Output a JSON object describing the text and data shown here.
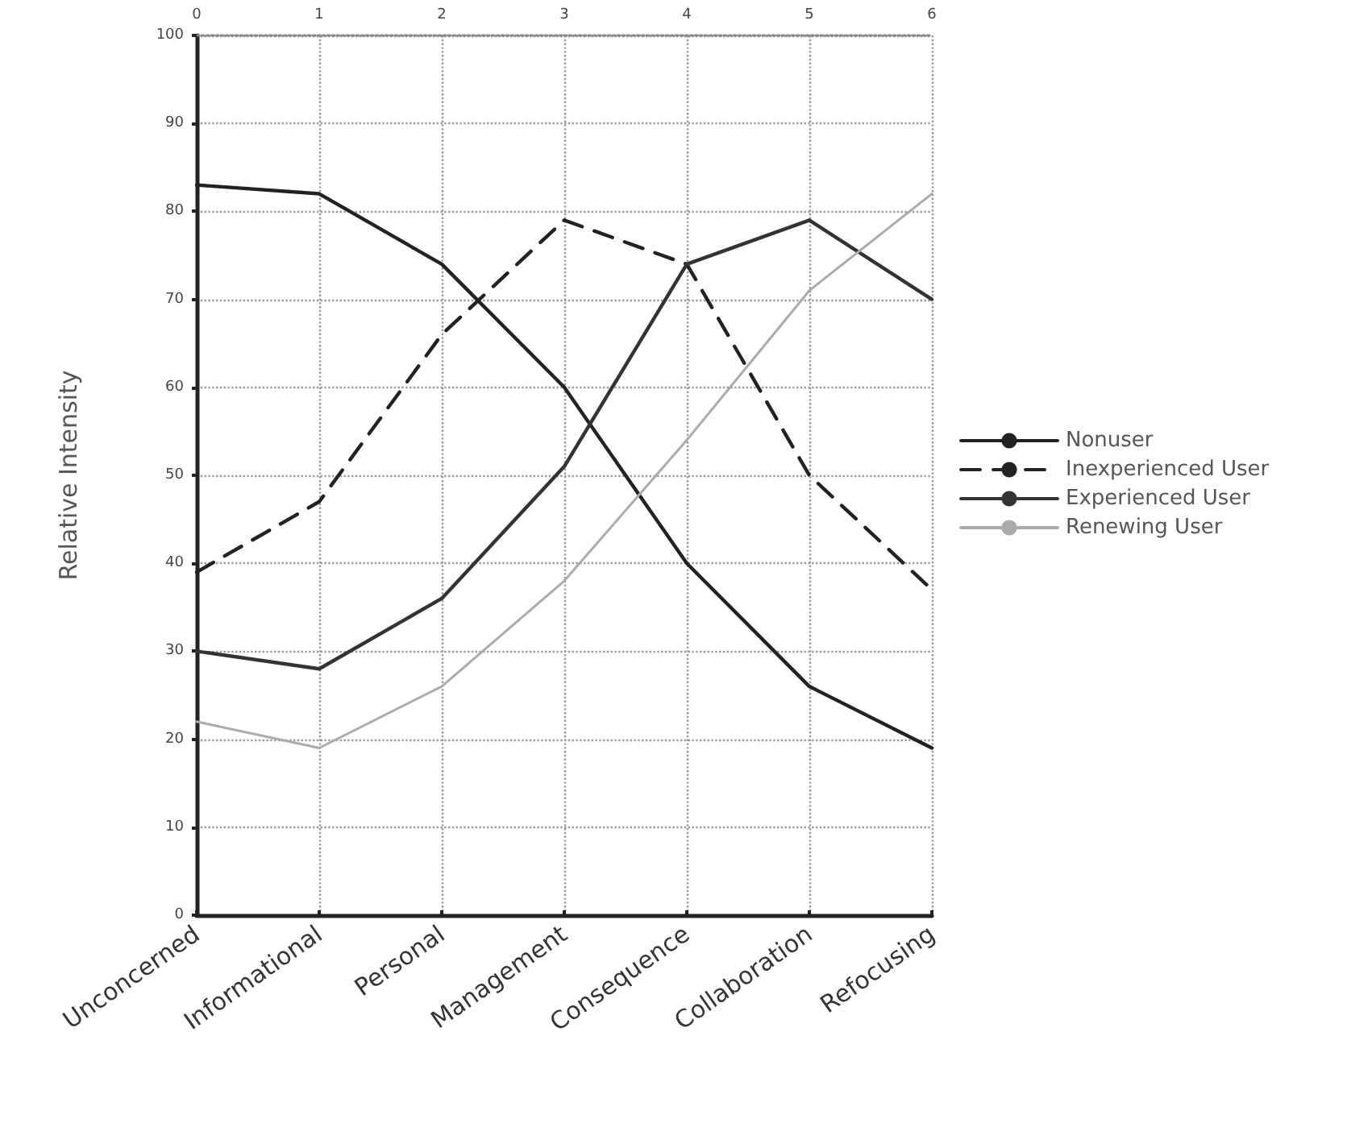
{
  "chart_data": {
    "type": "line",
    "ylabel": "Relative Intensity",
    "categories": [
      "Unconcerned",
      "Informational",
      "Personal",
      "Management",
      "Consequence",
      "Collaboration",
      "Refocusing"
    ],
    "x2lim": [
      0,
      6
    ],
    "x2ticks": [
      0,
      1,
      2,
      3,
      4,
      5,
      6
    ],
    "ylim": [
      0,
      100
    ],
    "yticks": [
      0,
      10,
      20,
      30,
      40,
      50,
      60,
      70,
      80,
      90,
      100
    ],
    "grid": true,
    "legend": "right",
    "marker": "none",
    "series": [
      {
        "name": "Nonuser",
        "color": "#222222",
        "line_style": "solid",
        "values": [
          83,
          82,
          74,
          60,
          40,
          26,
          19
        ]
      },
      {
        "name": "Inexperienced User",
        "color": "#222222",
        "line_style": "dashed",
        "values": [
          39,
          47,
          66,
          79,
          74,
          50,
          37
        ]
      },
      {
        "name": "Experienced User",
        "color": "#333333",
        "line_style": "solid",
        "values": [
          30,
          28,
          36,
          51,
          74,
          79,
          70
        ]
      },
      {
        "name": "Renewing User",
        "color": "#aaaaaa",
        "line_style": "solid",
        "values": [
          22,
          19,
          26,
          38,
          54,
          71,
          82
        ]
      }
    ]
  }
}
